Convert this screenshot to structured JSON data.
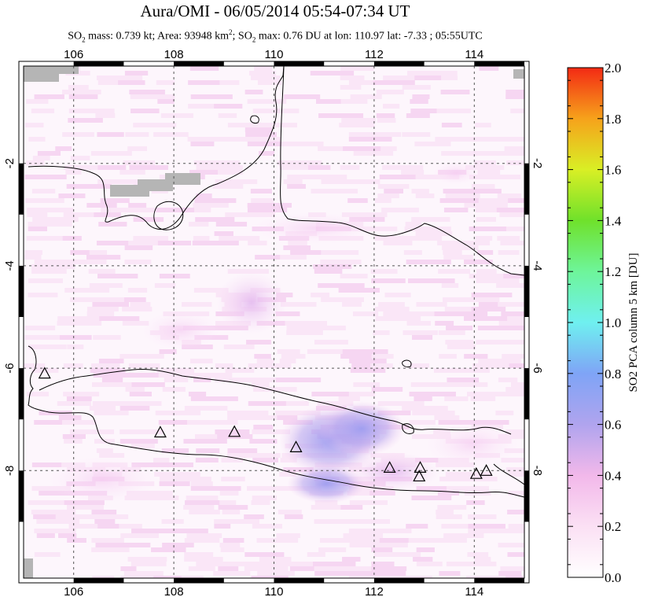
{
  "header": {
    "title": "Aura/OMI - 06/05/2014 05:54-07:34 UT",
    "subtitle_parts": {
      "p1": "SO",
      "p1_sub": "2",
      "p2": " mass: 0.739 kt; Area: 93948 km",
      "p2_sup": "2",
      "p3": "; SO",
      "p3_sub": "2",
      "p4": " max: 0.76 DU at lon: 110.97 lat: -7.33 ; 05:55UTC"
    }
  },
  "chart_data": {
    "type": "heatmap",
    "title": "Aura/OMI - 06/05/2014 05:54-07:34 UT",
    "x_ticks": [
      "106",
      "108",
      "110",
      "112",
      "114"
    ],
    "y_ticks": [
      "-2",
      "-4",
      "-6",
      "-8"
    ],
    "xlim": [
      105,
      115
    ],
    "ylim": [
      -10.1,
      -0.1
    ],
    "grid": true,
    "colorbar": {
      "label": "SO2 PCA column 5 km [DU]",
      "ticks": [
        "0.0",
        "0.2",
        "0.4",
        "0.6",
        "0.8",
        "1.0",
        "1.2",
        "1.4",
        "1.6",
        "1.8",
        "2.0"
      ],
      "range": [
        0,
        2
      ]
    },
    "volcanoes": [
      {
        "lon": 105.42,
        "lat": -6.1
      },
      {
        "lon": 107.73,
        "lat": -7.25
      },
      {
        "lon": 109.21,
        "lat": -7.24
      },
      {
        "lon": 110.44,
        "lat": -7.54
      },
      {
        "lon": 112.31,
        "lat": -7.94
      },
      {
        "lon": 112.92,
        "lat": -7.94
      },
      {
        "lon": 112.9,
        "lat": -8.11
      },
      {
        "lon": 114.04,
        "lat": -8.06
      },
      {
        "lon": 114.24,
        "lat": -8.0
      }
    ],
    "so2_max": {
      "value": 0.76,
      "lon": 110.97,
      "lat": -7.33
    }
  }
}
